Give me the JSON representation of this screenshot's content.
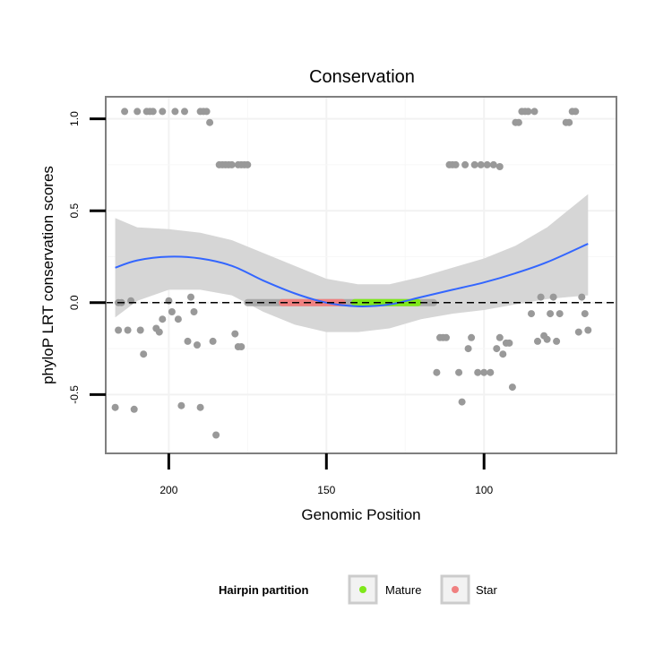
{
  "chart_data": {
    "type": "scatter",
    "title": "Conservation",
    "xlabel": "Genomic Position",
    "ylabel": "phyloP LRT conservation scores",
    "xlim": [
      220,
      58
    ],
    "x_reversed": true,
    "ylim": [
      -0.82,
      1.12
    ],
    "x_ticks": [
      200,
      150,
      100
    ],
    "y_ticks": [
      -0.5,
      0.0,
      0.5,
      1.0
    ],
    "y_tick_labels": [
      "-0.5",
      "0.0",
      "0.5",
      "1.0"
    ],
    "grid": true,
    "colors": {
      "points": "#999999",
      "smooth": "#3366ff",
      "ribbon": "#d4d4d4",
      "mature": "#7fe81a",
      "star": "#f08080",
      "hairpin_bar": "#aaaaaa",
      "panel_border": "#7f7f7f",
      "reference_line": "#000000"
    },
    "reference_line": {
      "y": 0,
      "style": "dashed"
    },
    "points": [
      {
        "x": 217,
        "y": -0.57
      },
      {
        "x": 216,
        "y": 0.0
      },
      {
        "x": 216,
        "y": -0.15
      },
      {
        "x": 215,
        "y": 0.0
      },
      {
        "x": 214,
        "y": 1.04
      },
      {
        "x": 213,
        "y": -0.15
      },
      {
        "x": 212,
        "y": 0.01
      },
      {
        "x": 211,
        "y": -0.58
      },
      {
        "x": 210,
        "y": 1.04
      },
      {
        "x": 209,
        "y": -0.15
      },
      {
        "x": 208,
        "y": -0.28
      },
      {
        "x": 207,
        "y": 1.04
      },
      {
        "x": 206,
        "y": 1.04
      },
      {
        "x": 205,
        "y": 1.04
      },
      {
        "x": 204,
        "y": -0.14
      },
      {
        "x": 203,
        "y": -0.16
      },
      {
        "x": 202,
        "y": -0.09
      },
      {
        "x": 202,
        "y": 1.04
      },
      {
        "x": 200,
        "y": 0.01
      },
      {
        "x": 199,
        "y": -0.05
      },
      {
        "x": 198,
        "y": 1.04
      },
      {
        "x": 197,
        "y": -0.09
      },
      {
        "x": 196,
        "y": -0.56
      },
      {
        "x": 195,
        "y": 1.04
      },
      {
        "x": 194,
        "y": -0.21
      },
      {
        "x": 193,
        "y": 0.03
      },
      {
        "x": 192,
        "y": -0.05
      },
      {
        "x": 191,
        "y": -0.23
      },
      {
        "x": 190,
        "y": -0.57
      },
      {
        "x": 190,
        "y": 1.04
      },
      {
        "x": 189,
        "y": 1.04
      },
      {
        "x": 188,
        "y": 1.04
      },
      {
        "x": 187,
        "y": 0.98
      },
      {
        "x": 186,
        "y": -0.21
      },
      {
        "x": 185,
        "y": -0.72
      },
      {
        "x": 184,
        "y": 0.75
      },
      {
        "x": 183,
        "y": 0.75
      },
      {
        "x": 182,
        "y": 0.75
      },
      {
        "x": 181,
        "y": 0.75
      },
      {
        "x": 180,
        "y": 0.75
      },
      {
        "x": 179,
        "y": -0.17
      },
      {
        "x": 178,
        "y": -0.24
      },
      {
        "x": 177,
        "y": -0.24
      },
      {
        "x": 178,
        "y": 0.75
      },
      {
        "x": 177,
        "y": 0.75
      },
      {
        "x": 176,
        "y": 0.75
      },
      {
        "x": 175,
        "y": 0.75
      },
      {
        "x": 115,
        "y": -0.38
      },
      {
        "x": 114,
        "y": -0.19
      },
      {
        "x": 113,
        "y": -0.19
      },
      {
        "x": 112,
        "y": -0.19
      },
      {
        "x": 111,
        "y": 0.75
      },
      {
        "x": 110,
        "y": 0.75
      },
      {
        "x": 109,
        "y": 0.75
      },
      {
        "x": 108,
        "y": -0.38
      },
      {
        "x": 107,
        "y": -0.54
      },
      {
        "x": 106,
        "y": 0.75
      },
      {
        "x": 105,
        "y": -0.25
      },
      {
        "x": 104,
        "y": -0.19
      },
      {
        "x": 103,
        "y": 0.75
      },
      {
        "x": 102,
        "y": -0.38
      },
      {
        "x": 101,
        "y": 0.75
      },
      {
        "x": 100,
        "y": -0.38
      },
      {
        "x": 99,
        "y": 0.75
      },
      {
        "x": 98,
        "y": -0.38
      },
      {
        "x": 97,
        "y": 0.75
      },
      {
        "x": 96,
        "y": -0.25
      },
      {
        "x": 95,
        "y": -0.19
      },
      {
        "x": 95,
        "y": 0.74
      },
      {
        "x": 94,
        "y": -0.28
      },
      {
        "x": 93,
        "y": -0.22
      },
      {
        "x": 92,
        "y": -0.22
      },
      {
        "x": 91,
        "y": -0.46
      },
      {
        "x": 90,
        "y": 0.98
      },
      {
        "x": 89,
        "y": 0.98
      },
      {
        "x": 88,
        "y": 1.04
      },
      {
        "x": 87,
        "y": 1.04
      },
      {
        "x": 86,
        "y": 1.04
      },
      {
        "x": 85,
        "y": -0.06
      },
      {
        "x": 84,
        "y": 1.04
      },
      {
        "x": 83,
        "y": -0.21
      },
      {
        "x": 82,
        "y": 0.03
      },
      {
        "x": 81,
        "y": -0.18
      },
      {
        "x": 80,
        "y": -0.2
      },
      {
        "x": 79,
        "y": -0.06
      },
      {
        "x": 78,
        "y": 0.03
      },
      {
        "x": 77,
        "y": -0.21
      },
      {
        "x": 76,
        "y": -0.06
      },
      {
        "x": 74,
        "y": 0.98
      },
      {
        "x": 73,
        "y": 0.98
      },
      {
        "x": 72,
        "y": 1.04
      },
      {
        "x": 71,
        "y": 1.04
      },
      {
        "x": 70,
        "y": -0.16
      },
      {
        "x": 69,
        "y": 0.03
      },
      {
        "x": 68,
        "y": -0.06
      },
      {
        "x": 67,
        "y": -0.15
      }
    ],
    "hairpin": {
      "x_start": 175,
      "x_end": 116,
      "y": 0.0
    },
    "partitions": [
      {
        "name": "Star",
        "x_start": 164,
        "x_end": 145,
        "y": 0.0
      },
      {
        "name": "Mature",
        "x_start": 141,
        "x_end": 121,
        "y": 0.0
      }
    ],
    "smooth": {
      "method": "loess",
      "series": [
        {
          "x": 217,
          "y": 0.19,
          "lo": -0.08,
          "hi": 0.46
        },
        {
          "x": 210,
          "y": 0.23,
          "lo": 0.01,
          "hi": 0.41
        },
        {
          "x": 200,
          "y": 0.25,
          "lo": 0.07,
          "hi": 0.4
        },
        {
          "x": 190,
          "y": 0.24,
          "lo": 0.07,
          "hi": 0.38
        },
        {
          "x": 180,
          "y": 0.2,
          "lo": 0.04,
          "hi": 0.34
        },
        {
          "x": 170,
          "y": 0.12,
          "lo": -0.05,
          "hi": 0.27
        },
        {
          "x": 160,
          "y": 0.05,
          "lo": -0.12,
          "hi": 0.2
        },
        {
          "x": 150,
          "y": 0.0,
          "lo": -0.16,
          "hi": 0.13
        },
        {
          "x": 140,
          "y": -0.02,
          "lo": -0.16,
          "hi": 0.1
        },
        {
          "x": 130,
          "y": -0.01,
          "lo": -0.14,
          "hi": 0.1
        },
        {
          "x": 120,
          "y": 0.03,
          "lo": -0.09,
          "hi": 0.14
        },
        {
          "x": 110,
          "y": 0.07,
          "lo": -0.06,
          "hi": 0.19
        },
        {
          "x": 100,
          "y": 0.11,
          "lo": -0.04,
          "hi": 0.24
        },
        {
          "x": 90,
          "y": 0.16,
          "lo": -0.01,
          "hi": 0.31
        },
        {
          "x": 80,
          "y": 0.22,
          "lo": 0.02,
          "hi": 0.41
        },
        {
          "x": 67,
          "y": 0.32,
          "lo": 0.04,
          "hi": 0.59
        }
      ]
    },
    "legend": {
      "title": "Hairpin partition",
      "position": "bottom",
      "entries": [
        {
          "label": "Mature",
          "color": "#7fe81a"
        },
        {
          "label": "Star",
          "color": "#f08080"
        }
      ]
    }
  }
}
